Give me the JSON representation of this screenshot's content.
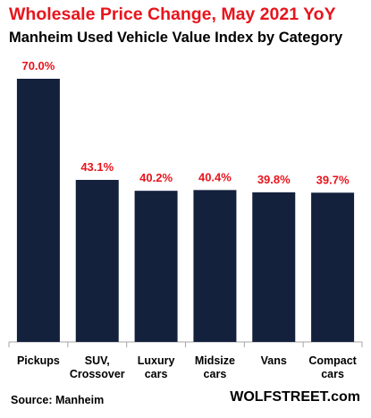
{
  "colors": {
    "title": "#e8141c",
    "bar": "#14213d",
    "label": "#e8141c",
    "axis": "#a6a6a6"
  },
  "header": {
    "title": "Wholesale Price Change, May 2021 YoY",
    "subtitle": "Manheim Used Vehicle Value Index by Category"
  },
  "footer": {
    "source": "Source: Manheim",
    "credit": "WOLFSTREET.com"
  },
  "chart_data": {
    "type": "bar",
    "title": "Wholesale Price Change, May 2021 YoY",
    "subtitle": "Manheim Used Vehicle Value Index by Category",
    "categories": [
      [
        "Pickups"
      ],
      [
        "SUV,",
        "Crossover"
      ],
      [
        "Luxury",
        "cars"
      ],
      [
        "Midsize",
        "cars"
      ],
      [
        "Vans"
      ],
      [
        "Compact",
        "cars"
      ]
    ],
    "values": [
      70.0,
      43.1,
      40.2,
      40.4,
      39.8,
      39.7
    ],
    "data_labels": [
      "70.0%",
      "43.1%",
      "40.2%",
      "40.4%",
      "39.8%",
      "39.7%"
    ],
    "ylim": [
      0,
      70
    ],
    "grid": false,
    "legend": "none"
  }
}
